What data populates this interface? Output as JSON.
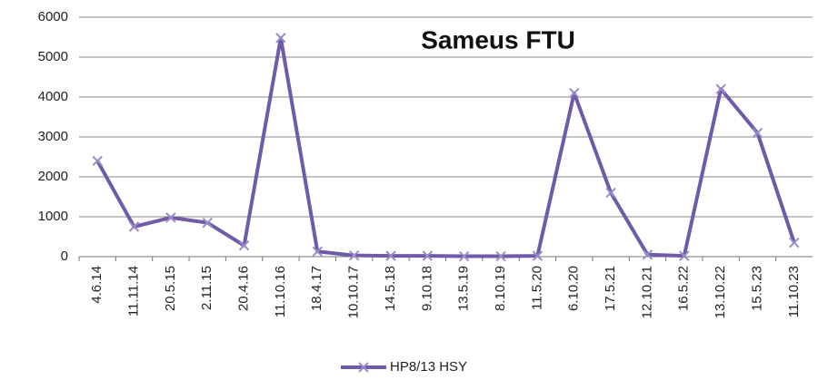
{
  "chart_data": {
    "type": "line",
    "title": "Sameus FTU",
    "categories": [
      "4.6.14",
      "11.11.14",
      "20.5.15",
      "2.11.15",
      "20.4.16",
      "11.10.16",
      "18.4.17",
      "10.10.17",
      "14.5.18",
      "9.10.18",
      "13.5.19",
      "8.10.19",
      "11.5.20",
      "6.10.20",
      "17.5.21",
      "12.10.21",
      "16.5.22",
      "13.10.22",
      "15.5.23",
      "11.10.23"
    ],
    "series": [
      {
        "name": "HP8/13 HSY",
        "color": "#6f5ba7",
        "values": [
          2400,
          750,
          980,
          850,
          280,
          5480,
          130,
          30,
          20,
          20,
          10,
          10,
          20,
          4100,
          1600,
          50,
          20,
          4200,
          3100,
          350
        ]
      }
    ],
    "ylim": [
      0,
      6000
    ],
    "yticks": [
      0,
      1000,
      2000,
      3000,
      4000,
      5000,
      6000
    ],
    "grid": true,
    "legend": "bottom"
  }
}
